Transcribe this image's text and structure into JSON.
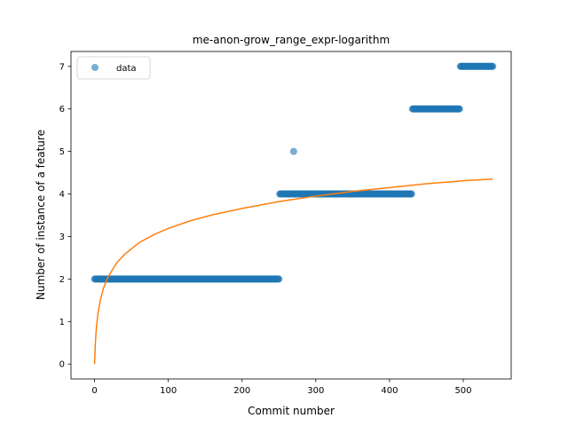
{
  "chart_data": {
    "type": "scatter",
    "title": "me-anon-grow_range_expr-logarithm",
    "xlabel": "Commit number",
    "ylabel": "Number of instance of a feature",
    "xlim": [
      -32,
      565
    ],
    "ylim": [
      -0.35,
      7.35
    ],
    "xticks": [
      0,
      100,
      200,
      300,
      400,
      500
    ],
    "yticks": [
      0,
      1,
      2,
      3,
      4,
      5,
      6,
      7
    ],
    "grid": false,
    "legend": {
      "entries": [
        "data"
      ],
      "placement": "top-left"
    },
    "colors": {
      "scatter": "#1f77b4",
      "fit": "#ff7f0e"
    },
    "series": [
      {
        "name": "data",
        "kind": "scatter",
        "segments": [
          {
            "x_start": 0,
            "x_end": 250,
            "y": 2
          },
          {
            "x_start": 251,
            "x_end": 430,
            "y": 4
          },
          {
            "x_start": 270,
            "x_end": 270,
            "y": 5
          },
          {
            "x_start": 431,
            "x_end": 495,
            "y": 6
          },
          {
            "x_start": 496,
            "x_end": 540,
            "y": 7
          }
        ]
      },
      {
        "kind": "line",
        "fit": "logarithmic",
        "x": [
          0,
          1,
          2,
          3,
          5,
          8,
          12,
          16,
          20,
          30,
          40,
          60,
          80,
          100,
          130,
          160,
          200,
          250,
          300,
          350,
          400,
          450,
          500,
          540
        ],
        "y": [
          0.0,
          0.48,
          0.76,
          0.95,
          1.24,
          1.52,
          1.78,
          1.96,
          2.1,
          2.38,
          2.57,
          2.85,
          3.04,
          3.19,
          3.37,
          3.51,
          3.66,
          3.82,
          3.95,
          4.06,
          4.15,
          4.24,
          4.31,
          4.35
        ]
      }
    ]
  }
}
